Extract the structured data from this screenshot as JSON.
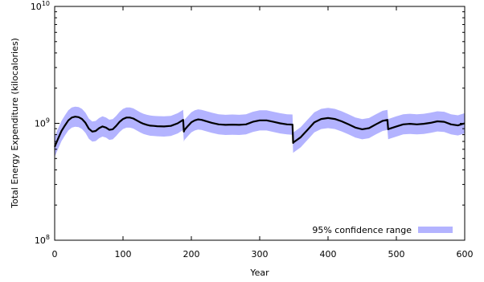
{
  "chart_data": {
    "type": "line",
    "title": "",
    "xlabel": "Year",
    "ylabel": "Total Energy Expenditure (kilocalories)",
    "xlim": [
      0,
      600
    ],
    "ylim": [
      100000000,
      10000000000
    ],
    "yscale": "log",
    "x_ticks": [
      "0",
      "100",
      "200",
      "300",
      "400",
      "500",
      "600"
    ],
    "y_ticks": [
      {
        "base": "10",
        "exp": "8"
      },
      {
        "base": "10",
        "exp": "9"
      },
      {
        "base": "10",
        "exp": "10"
      }
    ],
    "legend_position": "bottom-right",
    "legend": {
      "label": "95% confidence range",
      "color": "#b3b3ff"
    },
    "line_color": "#000000",
    "band_color": "#b3b3ff",
    "band_ratio": 1.22,
    "series": [
      {
        "x": [
          0,
          5,
          10,
          15,
          20,
          25,
          30,
          35,
          40,
          45,
          50,
          55,
          60,
          65,
          70,
          75,
          80,
          85,
          90,
          95,
          100,
          105,
          110,
          115,
          120,
          125,
          130,
          135,
          140,
          145,
          150,
          160,
          170,
          180,
          188,
          189,
          190,
          195,
          200,
          205,
          210,
          215,
          220,
          230,
          240,
          250,
          260,
          270,
          280,
          290,
          300,
          310,
          320,
          330,
          340,
          348,
          349,
          350,
          360,
          370,
          380,
          390,
          400,
          410,
          420,
          430,
          440,
          450,
          460,
          470,
          480,
          487,
          488,
          490,
          500,
          510,
          520,
          530,
          540,
          550,
          560,
          570,
          580,
          590,
          600
        ],
        "values": [
          630000000,
          740000000,
          860000000,
          960000000,
          1060000000,
          1120000000,
          1140000000,
          1130000000,
          1090000000,
          1010000000,
          900000000,
          850000000,
          860000000,
          910000000,
          940000000,
          920000000,
          880000000,
          890000000,
          950000000,
          1030000000,
          1090000000,
          1120000000,
          1120000000,
          1100000000,
          1060000000,
          1020000000,
          990000000,
          970000000,
          955000000,
          950000000,
          945000000,
          940000000,
          950000000,
          1000000000,
          1070000000,
          850000000,
          880000000,
          950000000,
          1020000000,
          1060000000,
          1080000000,
          1070000000,
          1050000000,
          1010000000,
          980000000,
          970000000,
          975000000,
          970000000,
          980000000,
          1030000000,
          1060000000,
          1060000000,
          1030000000,
          1000000000,
          980000000,
          975000000,
          680000000,
          690000000,
          760000000,
          880000000,
          1020000000,
          1090000000,
          1110000000,
          1090000000,
          1040000000,
          980000000,
          920000000,
          890000000,
          910000000,
          980000000,
          1050000000,
          1070000000,
          890000000,
          900000000,
          940000000,
          980000000,
          990000000,
          980000000,
          990000000,
          1010000000,
          1040000000,
          1030000000,
          980000000,
          960000000,
          1000000000
        ]
      }
    ]
  }
}
